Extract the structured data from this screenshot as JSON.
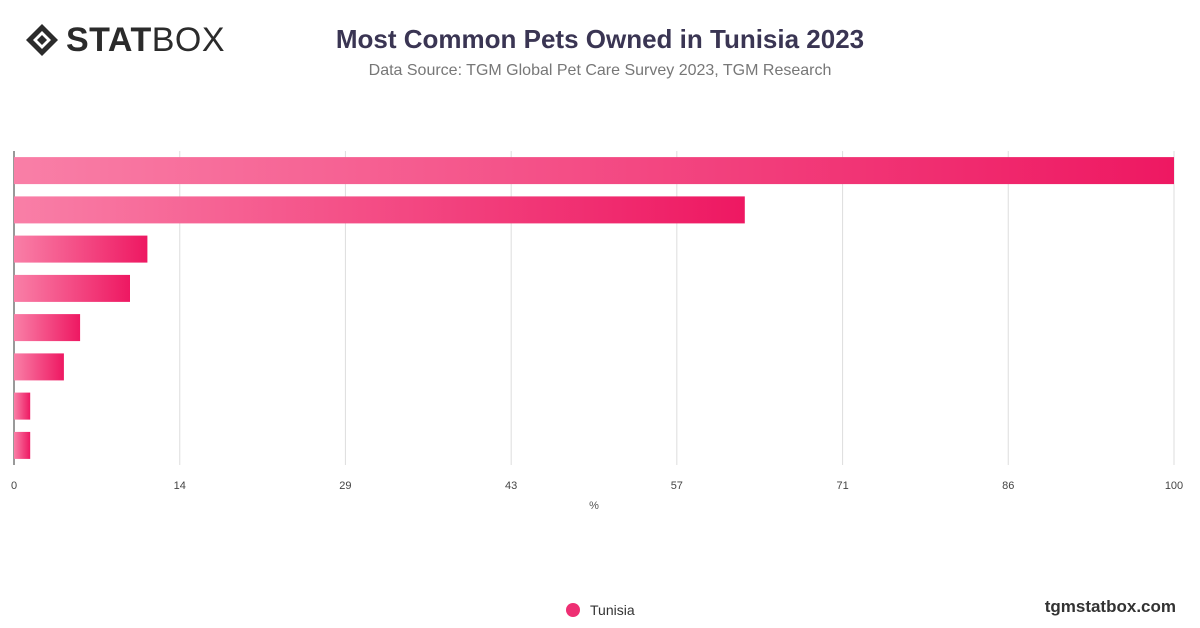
{
  "brand": {
    "logo_bold": "STAT",
    "logo_light": "BOX",
    "site": "tgmstatbox.com"
  },
  "chart_data": {
    "type": "bar",
    "orientation": "horizontal",
    "title": "Most Common Pets Owned in Tunisia 2023",
    "subtitle": "Data Source: TGM Global Pet Care Survey 2023, TGM Research",
    "xlabel": "%",
    "ylabel": "",
    "xlim": [
      0,
      100
    ],
    "ticks": [
      "0",
      "14",
      "29",
      "43",
      "57",
      "71",
      "86",
      "100"
    ],
    "tick_values": [
      0,
      14.29,
      28.57,
      42.86,
      57.14,
      71.43,
      85.71,
      100
    ],
    "grid": true,
    "legend_position": "bottom-center",
    "series": [
      {
        "name": "Tunisia",
        "color": "#ee2f73",
        "values": [
          100,
          63,
          11.5,
          10,
          5.7,
          4.3,
          1.4,
          1.4
        ]
      }
    ]
  }
}
